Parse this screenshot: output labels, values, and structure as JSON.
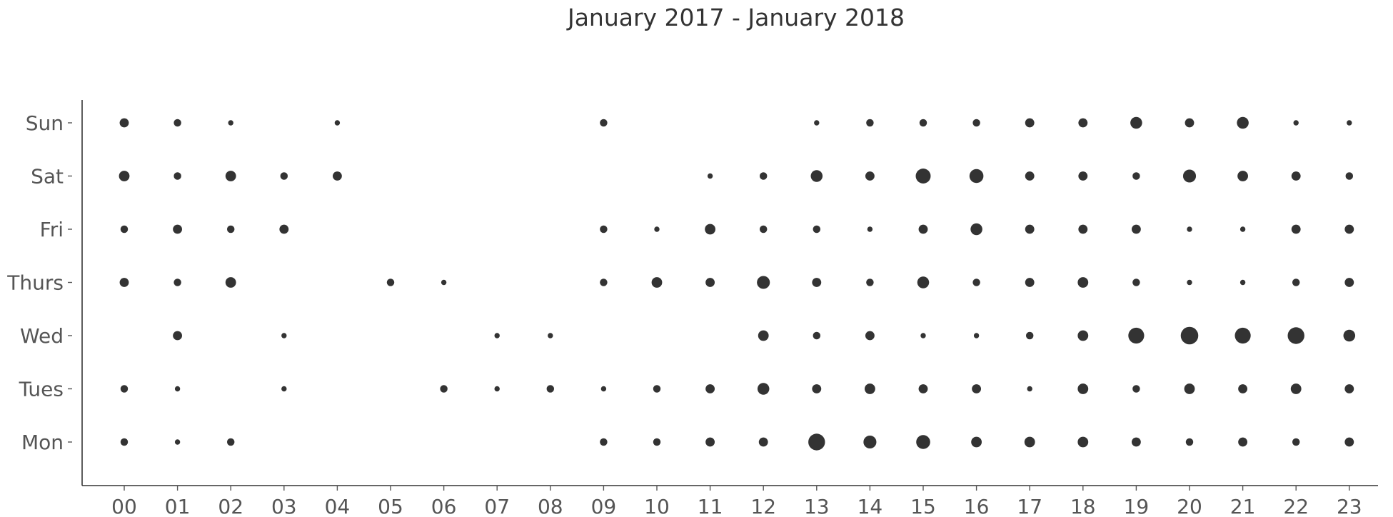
{
  "chart_data": {
    "type": "scatter",
    "title": "January 2017 - January 2018",
    "xlabel": "",
    "ylabel": "",
    "x_categories": [
      "00",
      "01",
      "02",
      "03",
      "04",
      "05",
      "06",
      "07",
      "08",
      "09",
      "10",
      "11",
      "12",
      "13",
      "14",
      "15",
      "16",
      "17",
      "18",
      "19",
      "20",
      "21",
      "22",
      "23"
    ],
    "y_categories": [
      "Mon",
      "Tues",
      "Wed",
      "Thurs",
      "Fri",
      "Sat",
      "Sun"
    ],
    "size_encoding": "relative count per day and hour (marker area)",
    "grid": false,
    "legend": "none",
    "color": "#333333",
    "counts": {
      "Sun": [
        3,
        2,
        1,
        0,
        1,
        0,
        0,
        0,
        0,
        2,
        0,
        0,
        0,
        1,
        2,
        2,
        2,
        3,
        3,
        5,
        3,
        5,
        1,
        1
      ],
      "Sat": [
        4,
        2,
        4,
        2,
        3,
        0,
        0,
        0,
        0,
        0,
        0,
        1,
        2,
        5,
        3,
        8,
        7,
        3,
        3,
        2,
        6,
        4,
        3,
        2
      ],
      "Fri": [
        2,
        3,
        2,
        3,
        0,
        0,
        0,
        0,
        0,
        2,
        1,
        4,
        2,
        2,
        1,
        3,
        5,
        3,
        3,
        3,
        1,
        1,
        3,
        3
      ],
      "Thurs": [
        3,
        2,
        4,
        0,
        0,
        2,
        1,
        0,
        0,
        2,
        4,
        3,
        6,
        3,
        2,
        5,
        2,
        3,
        4,
        2,
        1,
        1,
        2,
        3
      ],
      "Wed": [
        0,
        3,
        0,
        1,
        0,
        0,
        0,
        1,
        1,
        0,
        0,
        0,
        4,
        2,
        3,
        1,
        1,
        2,
        4,
        9,
        11,
        9,
        10,
        5
      ],
      "Tues": [
        2,
        1,
        0,
        1,
        0,
        0,
        2,
        1,
        2,
        1,
        2,
        3,
        5,
        3,
        4,
        3,
        3,
        1,
        4,
        2,
        4,
        3,
        4,
        3
      ],
      "Mon": [
        2,
        1,
        2,
        0,
        0,
        0,
        0,
        0,
        0,
        2,
        2,
        3,
        3,
        10,
        6,
        7,
        4,
        4,
        4,
        3,
        2,
        3,
        2,
        3
      ]
    }
  }
}
